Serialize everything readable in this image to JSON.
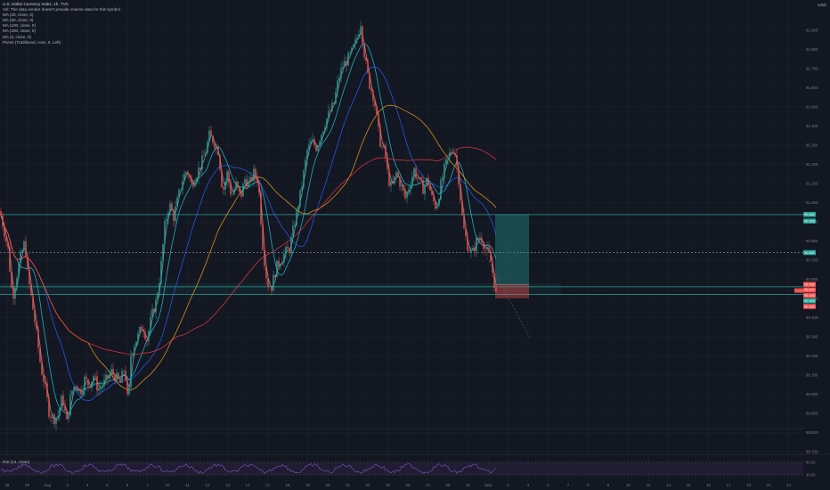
{
  "header": {
    "title": "U.S. Dollar Currency Index, 1h, TVC",
    "currency": "USD"
  },
  "legend": [
    {
      "label": "Vol: The data vendor doesn't provide volume data for this symbol."
    },
    {
      "label": "MA (20, close, 0)"
    },
    {
      "label": "MA (50, close, 0)"
    },
    {
      "label": "MA (100, close, 0)"
    },
    {
      "label": "MA (200, close, 0)"
    },
    {
      "label": "MA (5, close, 0)"
    },
    {
      "label": "Pivots (Traditional, Auto, 5, Left)"
    }
  ],
  "price_axis": {
    "labels": [
      "91.900",
      "91.800",
      "91.700",
      "91.600",
      "91.500",
      "91.400",
      "91.300",
      "91.200",
      "91.100",
      "91.000",
      "90.900",
      "90.800",
      "90.700",
      "90.600",
      "90.500",
      "90.400",
      "90.300",
      "90.200",
      "90.100",
      "90.000",
      "89.900",
      "89.800",
      "89.700"
    ]
  },
  "price_badges": [
    {
      "text": "90.862",
      "price": 90.862,
      "color": "#26a69a"
    },
    {
      "text": "90.855",
      "price": 90.855,
      "color": "#26a69a"
    },
    {
      "text": "90.660",
      "price": 90.66,
      "color": "#26a69a"
    },
    {
      "text": "90.492",
      "price": 90.492,
      "color": "#ef5350"
    },
    {
      "text": "90.471",
      "price": 90.471,
      "color": "#ef5350"
    },
    {
      "text": "90.440",
      "price": 90.44,
      "color": "#ef5350"
    },
    {
      "text": "90.429",
      "price": 90.429,
      "color": "#26a69a"
    },
    {
      "text": "90.420",
      "price": 90.42,
      "color": "#ef5350"
    }
  ],
  "time_axis": {
    "labels": [
      "28",
      "29",
      "Aug",
      "3",
      "4",
      "5",
      "6",
      "7",
      "10",
      "11",
      "12",
      "13",
      "14",
      "17",
      "18",
      "19",
      "20",
      "21",
      "24",
      "25",
      "26",
      "27",
      "28",
      "31",
      "Sep",
      "2",
      "3",
      "4",
      "7",
      "8",
      "9",
      "10",
      "11",
      "14",
      "15",
      "16",
      "17",
      "18",
      "21",
      "22"
    ]
  },
  "rsi": {
    "label": "RSI (14, close)",
    "labels": [
      "80.00",
      "40.00"
    ]
  },
  "chart_data": {
    "type": "candlestick",
    "symbol": "U.S. Dollar Currency Index",
    "interval": "1h",
    "ylim": [
      89.65,
      91.95
    ],
    "ma_periods": [
      20,
      50,
      100,
      200,
      5
    ],
    "ma_colors": [
      "#26c6da",
      "#2962ff",
      "#f7a21b",
      "#f23645",
      "#9e9e9e"
    ],
    "up_color": "#26a69a",
    "down_color": "#ef5350",
    "horizontal_levels": [
      90.862,
      90.66,
      90.48,
      90.44,
      89.73
    ],
    "close_path": [
      [
        0,
        90.88
      ],
      [
        9,
        90.68
      ],
      [
        14,
        90.42
      ],
      [
        22,
        90.62
      ],
      [
        28,
        90.72
      ],
      [
        31,
        90.55
      ],
      [
        39,
        90.3
      ],
      [
        46,
        90.05
      ],
      [
        50,
        89.97
      ],
      [
        55,
        89.82
      ],
      [
        60,
        89.78
      ],
      [
        65,
        89.8
      ],
      [
        70,
        89.9
      ],
      [
        75,
        89.76
      ],
      [
        80,
        89.92
      ],
      [
        85,
        89.97
      ],
      [
        90,
        89.92
      ],
      [
        95,
        89.99
      ],
      [
        100,
        89.96
      ],
      [
        105,
        90.01
      ],
      [
        110,
        89.94
      ],
      [
        115,
        89.96
      ],
      [
        120,
        89.99
      ],
      [
        125,
        90.03
      ],
      [
        130,
        90.0
      ],
      [
        135,
        89.97
      ],
      [
        140,
        90.06
      ],
      [
        144,
        89.83
      ],
      [
        147,
        90.12
      ],
      [
        150,
        90.17
      ],
      [
        155,
        90.22
      ],
      [
        160,
        90.28
      ],
      [
        165,
        90.2
      ],
      [
        170,
        90.32
      ],
      [
        175,
        90.4
      ],
      [
        180,
        90.55
      ],
      [
        185,
        90.8
      ],
      [
        190,
        90.92
      ],
      [
        195,
        90.85
      ],
      [
        200,
        90.95
      ],
      [
        205,
        91.05
      ],
      [
        210,
        91.1
      ],
      [
        215,
        91.02
      ],
      [
        220,
        91.07
      ],
      [
        225,
        91.12
      ],
      [
        230,
        91.18
      ],
      [
        235,
        91.28
      ],
      [
        240,
        91.25
      ],
      [
        245,
        91.2
      ],
      [
        248,
        91.08
      ],
      [
        250,
        90.98
      ],
      [
        255,
        91.08
      ],
      [
        260,
        90.96
      ],
      [
        265,
        91.02
      ],
      [
        270,
        90.95
      ],
      [
        275,
        91.05
      ],
      [
        280,
        91.02
      ],
      [
        285,
        91.08
      ],
      [
        290,
        91.04
      ],
      [
        295,
        90.7
      ],
      [
        300,
        90.5
      ],
      [
        305,
        90.48
      ],
      [
        310,
        90.58
      ],
      [
        315,
        90.62
      ],
      [
        320,
        90.66
      ],
      [
        325,
        90.68
      ],
      [
        330,
        90.8
      ],
      [
        335,
        90.92
      ],
      [
        338,
        90.99
      ],
      [
        340,
        91.05
      ],
      [
        345,
        91.2
      ],
      [
        350,
        91.25
      ],
      [
        355,
        91.22
      ],
      [
        360,
        91.28
      ],
      [
        365,
        91.35
      ],
      [
        370,
        91.4
      ],
      [
        375,
        91.45
      ],
      [
        380,
        91.58
      ],
      [
        385,
        91.65
      ],
      [
        390,
        91.68
      ],
      [
        395,
        91.72
      ],
      [
        400,
        91.78
      ],
      [
        405,
        91.88
      ],
      [
        408,
        91.75
      ],
      [
        412,
        91.62
      ],
      [
        415,
        91.55
      ],
      [
        420,
        91.48
      ],
      [
        425,
        91.3
      ],
      [
        428,
        91.22
      ],
      [
        432,
        91.2
      ],
      [
        436,
        91.05
      ],
      [
        440,
        91.0
      ],
      [
        445,
        91.08
      ],
      [
        450,
        91.02
      ],
      [
        455,
        90.95
      ],
      [
        460,
        91.02
      ],
      [
        465,
        91.1
      ],
      [
        470,
        91.04
      ],
      [
        475,
        91.0
      ],
      [
        480,
        91.05
      ],
      [
        485,
        90.95
      ],
      [
        490,
        90.9
      ],
      [
        495,
        91.02
      ],
      [
        500,
        91.12
      ],
      [
        505,
        91.18
      ],
      [
        510,
        91.22
      ],
      [
        515,
        91.05
      ],
      [
        520,
        90.8
      ],
      [
        525,
        90.7
      ],
      [
        530,
        90.65
      ],
      [
        535,
        90.72
      ],
      [
        540,
        90.75
      ],
      [
        545,
        90.68
      ],
      [
        550,
        90.64
      ],
      [
        555,
        90.5
      ],
      [
        557,
        90.44
      ]
    ]
  },
  "colors": {
    "background": "#131722",
    "grid": "#1e222d",
    "axis_text": "#787b86",
    "green_level": "#26a69a",
    "red_level": "#ef5350",
    "rsi_band": "#2a1f3d",
    "rsi_line": "#7e57c2"
  }
}
